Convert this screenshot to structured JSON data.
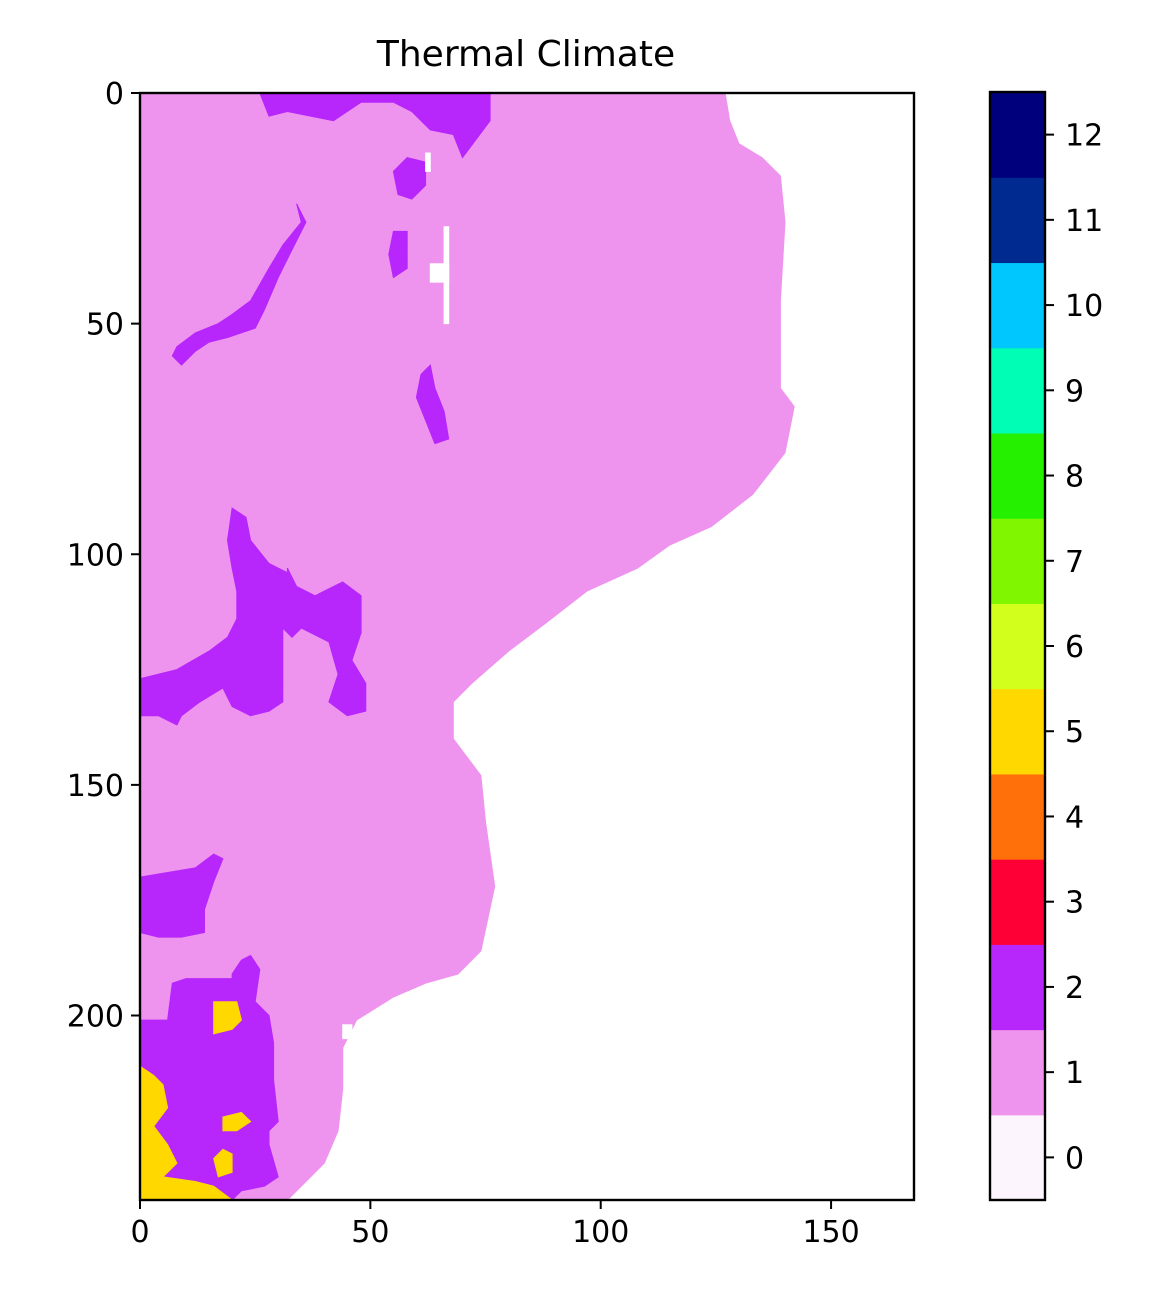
{
  "chart_data": {
    "type": "heatmap",
    "title": "Thermal Climate",
    "xlabel": "",
    "ylabel": "",
    "xlim": [
      0,
      168
    ],
    "ylim": [
      240,
      0
    ],
    "x_ticks": [
      "0",
      "50",
      "100",
      "150"
    ],
    "x_tick_values": [
      0,
      50,
      100,
      150
    ],
    "y_ticks": [
      "0",
      "50",
      "100",
      "150",
      "200"
    ],
    "y_tick_values": [
      0,
      50,
      100,
      150,
      200
    ],
    "colorbar": {
      "ticks": [
        "0",
        "1",
        "2",
        "3",
        "4",
        "5",
        "6",
        "7",
        "8",
        "9",
        "10",
        "11",
        "12"
      ],
      "colors": [
        "#fdf5fd",
        "#ee94ee",
        "#b726fb",
        "#ff0036",
        "#ff6f0a",
        "#ffd800",
        "#d2ff1c",
        "#80f700",
        "#25f000",
        "#00ffb4",
        "#00c8ff",
        "#002a8f",
        "#00007c"
      ]
    },
    "class_colors": {
      "no_data": "#ffffff",
      "class_1": "#ee94ee",
      "class_2": "#b726fb",
      "class_5": "#ffd800"
    },
    "regions": {
      "class_1": [
        [
          [
            0,
            0
          ],
          [
            127,
            0
          ],
          [
            128,
            6
          ],
          [
            130,
            11
          ],
          [
            135,
            14
          ],
          [
            139,
            18
          ],
          [
            140,
            28
          ],
          [
            139,
            45
          ],
          [
            139,
            64
          ],
          [
            142,
            68
          ],
          [
            140,
            78
          ],
          [
            133,
            87
          ],
          [
            124,
            94
          ],
          [
            115,
            98
          ],
          [
            108,
            103
          ],
          [
            97,
            108
          ],
          [
            88,
            115
          ],
          [
            80,
            121
          ],
          [
            72,
            128
          ],
          [
            68,
            132
          ],
          [
            68,
            140
          ],
          [
            74,
            148
          ],
          [
            75,
            158
          ],
          [
            77,
            172
          ],
          [
            74,
            186
          ],
          [
            69,
            191
          ],
          [
            62,
            193
          ],
          [
            55,
            196
          ],
          [
            47,
            201
          ],
          [
            44,
            207
          ],
          [
            44,
            216
          ],
          [
            43,
            225
          ],
          [
            40,
            232
          ],
          [
            35,
            237
          ],
          [
            32,
            240
          ],
          [
            0,
            240
          ]
        ]
      ],
      "class_2": [
        [
          [
            26,
            0
          ],
          [
            76,
            0
          ],
          [
            76,
            6
          ],
          [
            70,
            14
          ],
          [
            68,
            9
          ],
          [
            63,
            8
          ],
          [
            59,
            4
          ],
          [
            55,
            2
          ],
          [
            48,
            2
          ],
          [
            42,
            6
          ],
          [
            32,
            4
          ],
          [
            28,
            5
          ]
        ],
        [
          [
            58,
            14
          ],
          [
            62,
            15
          ],
          [
            62,
            20
          ],
          [
            59,
            23
          ],
          [
            56,
            22
          ],
          [
            55,
            17
          ]
        ],
        [
          [
            34,
            24
          ],
          [
            35,
            28
          ],
          [
            31,
            33
          ],
          [
            28,
            38
          ],
          [
            24,
            45
          ],
          [
            20,
            48
          ],
          [
            17,
            50
          ],
          [
            12,
            52
          ],
          [
            8,
            55
          ],
          [
            7,
            57
          ],
          [
            9,
            59
          ],
          [
            12,
            56
          ],
          [
            15,
            54
          ],
          [
            19,
            53
          ],
          [
            25,
            51
          ],
          [
            27,
            47
          ],
          [
            30,
            40
          ],
          [
            33,
            34
          ],
          [
            36,
            28
          ]
        ],
        [
          [
            55,
            30
          ],
          [
            58,
            30
          ],
          [
            58,
            38
          ],
          [
            55,
            40
          ],
          [
            54,
            35
          ]
        ],
        [
          [
            63,
            59
          ],
          [
            64,
            64
          ],
          [
            66,
            69
          ],
          [
            67,
            75
          ],
          [
            64,
            76
          ],
          [
            62,
            71
          ],
          [
            60,
            66
          ],
          [
            61,
            61
          ]
        ],
        [
          [
            20,
            90
          ],
          [
            23,
            92
          ],
          [
            24,
            97
          ],
          [
            28,
            102
          ],
          [
            32,
            104
          ],
          [
            32,
            103
          ],
          [
            34,
            107
          ],
          [
            38,
            109
          ],
          [
            40,
            108
          ],
          [
            44,
            106
          ],
          [
            48,
            109
          ],
          [
            48,
            117
          ],
          [
            46,
            123
          ],
          [
            49,
            128
          ],
          [
            49,
            134
          ],
          [
            45,
            135
          ],
          [
            41,
            132
          ],
          [
            43,
            126
          ],
          [
            41,
            119
          ],
          [
            35,
            116
          ],
          [
            33,
            118
          ],
          [
            31,
            116
          ],
          [
            31,
            121
          ],
          [
            31,
            129
          ],
          [
            31,
            132
          ],
          [
            28,
            134
          ],
          [
            24,
            135
          ],
          [
            20,
            133
          ],
          [
            18,
            129
          ],
          [
            13,
            132
          ],
          [
            9,
            135
          ],
          [
            8,
            137
          ],
          [
            4,
            135
          ],
          [
            0,
            135
          ],
          [
            0,
            127
          ],
          [
            8,
            125
          ],
          [
            15,
            121
          ],
          [
            19,
            118
          ],
          [
            21,
            114
          ],
          [
            21,
            108
          ],
          [
            20,
            103
          ],
          [
            19,
            97
          ]
        ],
        [
          [
            16,
            165
          ],
          [
            18,
            166
          ],
          [
            16,
            171
          ],
          [
            14,
            177
          ],
          [
            14,
            182
          ],
          [
            9,
            183
          ],
          [
            4,
            183
          ],
          [
            0,
            182
          ],
          [
            0,
            170
          ],
          [
            6,
            169
          ],
          [
            12,
            168
          ]
        ],
        [
          [
            24,
            187
          ],
          [
            22,
            188
          ],
          [
            20,
            191
          ],
          [
            20,
            192
          ],
          [
            10,
            192
          ],
          [
            7,
            193
          ],
          [
            6,
            201
          ],
          [
            0,
            201
          ],
          [
            0,
            240
          ],
          [
            20,
            240
          ],
          [
            22,
            238
          ],
          [
            27,
            237
          ],
          [
            30,
            235
          ],
          [
            28,
            228
          ],
          [
            28,
            225
          ],
          [
            30,
            223
          ],
          [
            29,
            214
          ],
          [
            29,
            206
          ],
          [
            28,
            200
          ],
          [
            25,
            197
          ],
          [
            26,
            190
          ]
        ]
      ],
      "class_5": [
        [
          [
            16,
            197
          ],
          [
            21,
            197
          ],
          [
            22,
            201
          ],
          [
            20,
            203
          ],
          [
            16,
            204
          ]
        ],
        [
          [
            0,
            211
          ],
          [
            3,
            213
          ],
          [
            5,
            215
          ],
          [
            6,
            220
          ],
          [
            3,
            224
          ],
          [
            6,
            228
          ],
          [
            8,
            232
          ],
          [
            5,
            235
          ],
          [
            12,
            236
          ],
          [
            16,
            237
          ],
          [
            20,
            240
          ],
          [
            0,
            240
          ]
        ],
        [
          [
            18,
            222
          ],
          [
            22,
            221
          ],
          [
            24,
            223
          ],
          [
            21,
            225
          ],
          [
            18,
            225
          ]
        ],
        [
          [
            18,
            229
          ],
          [
            20,
            230
          ],
          [
            20,
            234
          ],
          [
            17,
            235
          ],
          [
            16,
            231
          ]
        ]
      ],
      "no_data": [
        [
          [
            62,
            13
          ],
          [
            63,
            13
          ],
          [
            63,
            17
          ],
          [
            62,
            17
          ]
        ],
        [
          [
            63,
            37
          ],
          [
            67,
            37
          ],
          [
            67,
            41
          ],
          [
            63,
            41
          ]
        ],
        [
          [
            66,
            29
          ],
          [
            67,
            29
          ],
          [
            67,
            50
          ],
          [
            66,
            50
          ]
        ],
        [
          [
            44,
            202
          ],
          [
            46,
            202
          ],
          [
            46,
            205
          ],
          [
            44,
            205
          ]
        ]
      ]
    }
  }
}
